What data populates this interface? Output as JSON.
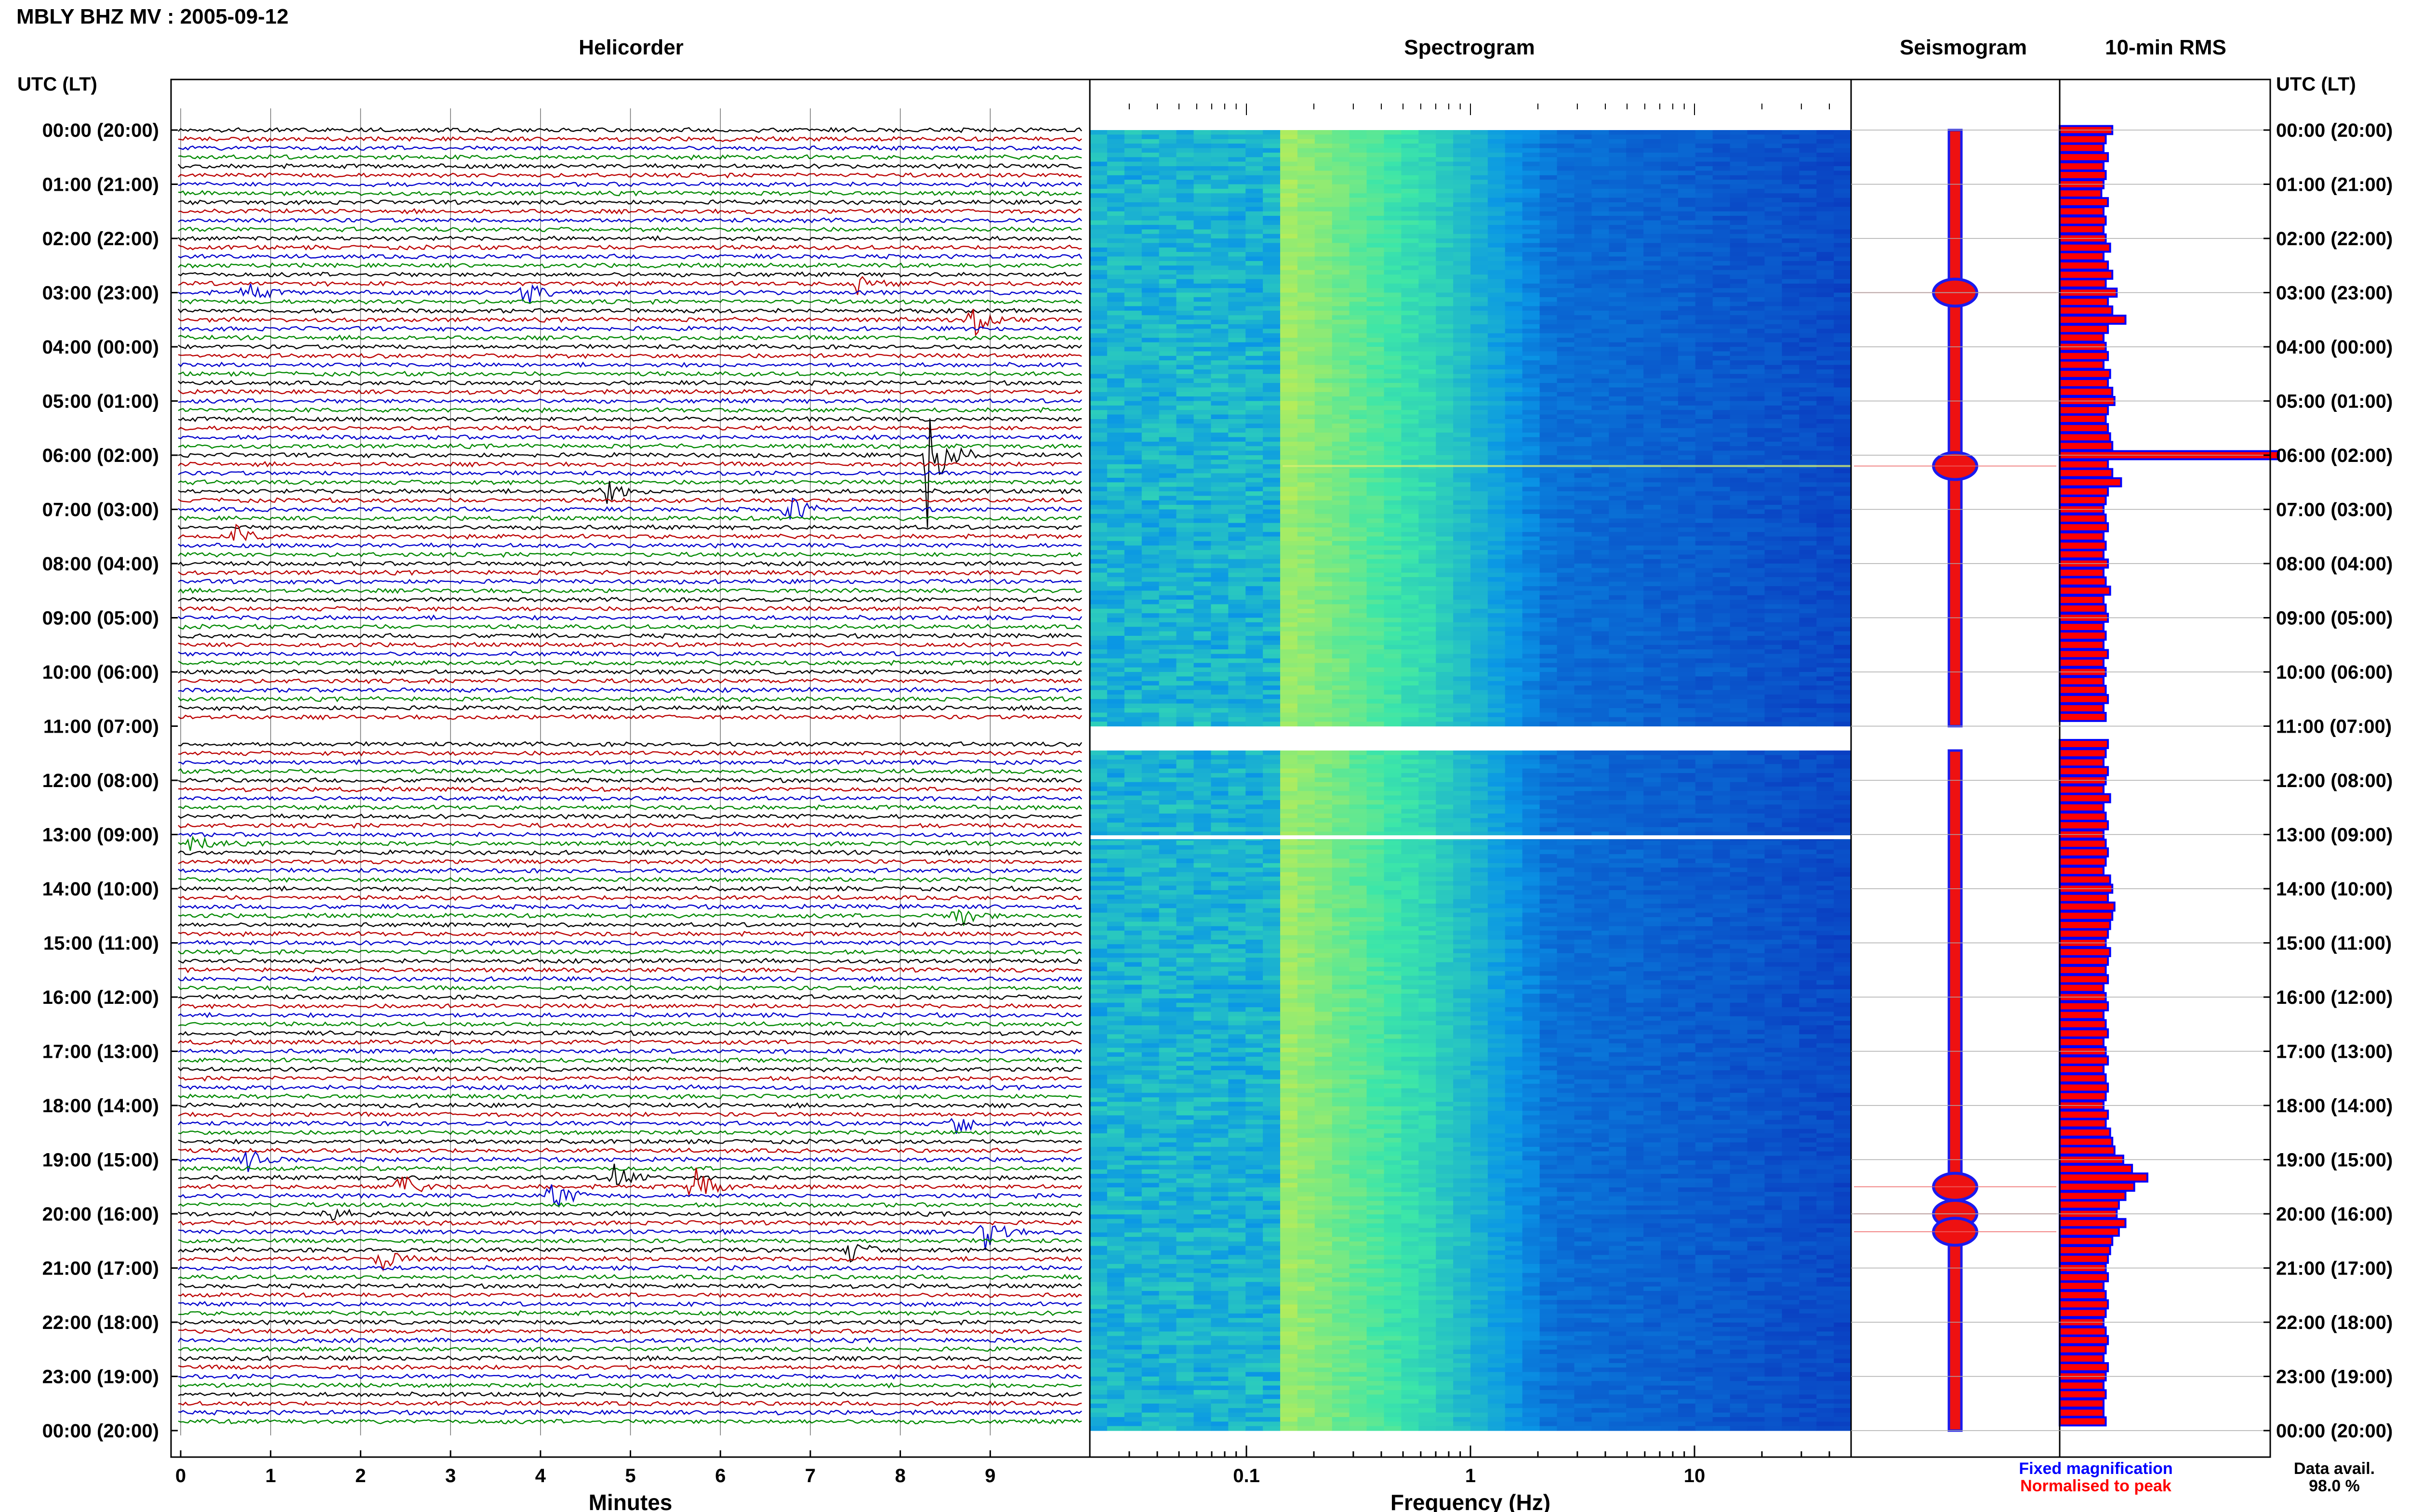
{
  "header": {
    "title": "MBLY BHZ MV : 2005-09-12"
  },
  "panels": {
    "helicorder": "Helicorder",
    "spectrogram": "Spectrogram",
    "seismogram": "Seismogram",
    "rms": "10-min RMS"
  },
  "axis": {
    "time_header": "UTC (LT)",
    "minutes_label": "Minutes",
    "frequency_label": "Frequency (Hz)"
  },
  "legend": {
    "fixed": "Fixed magnification",
    "normalised": "Normalised to peak",
    "avail_label": "Data avail.",
    "avail_value": "98.0 %"
  },
  "colors": {
    "trace_cycle": [
      "#000000",
      "#bb0000",
      "#0000cc",
      "#008800"
    ],
    "rms_fill": "#ff0000",
    "rms_edge": "#0000ff",
    "fixed_text": "#0000ff",
    "normalised_text": "#ff0000",
    "spectro_low": "#0a1ec8",
    "spectro_mid": "#2ec4e6",
    "spectro_peak": "#e6ef50"
  },
  "chart_data": [
    {
      "type": "line",
      "panel": "Helicorder",
      "xlabel": "Minutes",
      "x_ticks": [
        "0",
        "1",
        "2",
        "3",
        "4",
        "5",
        "6",
        "7",
        "8",
        "9"
      ],
      "xlim": [
        0,
        10
      ],
      "row_minutes": 10,
      "rows_per_hour": 6,
      "y_tick_labels": [
        "00:00 (20:00)",
        "01:00 (21:00)",
        "02:00 (22:00)",
        "03:00 (23:00)",
        "04:00 (00:00)",
        "05:00 (01:00)",
        "06:00 (02:00)",
        "07:00 (03:00)",
        "08:00 (04:00)",
        "09:00 (05:00)",
        "10:00 (06:00)",
        "11:00 (07:00)",
        "12:00 (08:00)",
        "13:00 (09:00)",
        "14:00 (10:00)",
        "15:00 (11:00)",
        "16:00 (12:00)",
        "17:00 (13:00)",
        "18:00 (14:00)",
        "19:00 (15:00)",
        "20:00 (16:00)",
        "21:00 (17:00)",
        "22:00 (18:00)",
        "23:00 (19:00)",
        "00:00 (20:00)"
      ],
      "data_gap": {
        "start_hour": 11.0,
        "end_hour": 11.25,
        "start_minute_in_row": 5.8
      },
      "events": [
        {
          "hour": 3.0,
          "minute": 0.7,
          "amplitude": 0.5
        },
        {
          "hour": 3.0,
          "minute": 3.8,
          "amplitude": 0.6
        },
        {
          "hour": 2.85,
          "minute": 7.5,
          "amplitude": 0.5
        },
        {
          "hour": 3.5,
          "minute": 8.8,
          "amplitude": 0.6
        },
        {
          "hour": 6.0,
          "minute": 8.3,
          "amplitude": 3.0
        },
        {
          "hour": 6.7,
          "minute": 4.7,
          "amplitude": 0.5
        },
        {
          "hour": 7.0,
          "minute": 6.7,
          "amplitude": 0.8
        },
        {
          "hour": 7.5,
          "minute": 0.6,
          "amplitude": 0.4
        },
        {
          "hour": 13.1,
          "minute": 0.1,
          "amplitude": 0.4
        },
        {
          "hour": 14.5,
          "minute": 8.6,
          "amplitude": 0.6
        },
        {
          "hour": 18.3,
          "minute": 8.6,
          "amplitude": 0.5
        },
        {
          "hour": 19.0,
          "minute": 0.7,
          "amplitude": 0.5
        },
        {
          "hour": 19.33,
          "minute": 4.8,
          "amplitude": 0.7
        },
        {
          "hour": 19.5,
          "minute": 5.7,
          "amplitude": 1.0
        },
        {
          "hour": 19.5,
          "minute": 2.4,
          "amplitude": 0.6
        },
        {
          "hour": 19.67,
          "minute": 4.1,
          "amplitude": 0.7
        },
        {
          "hour": 20.0,
          "minute": 1.6,
          "amplitude": 0.5
        },
        {
          "hour": 20.33,
          "minute": 8.9,
          "amplitude": 0.8
        },
        {
          "hour": 20.83,
          "minute": 2.2,
          "amplitude": 0.5
        },
        {
          "hour": 20.67,
          "minute": 7.4,
          "amplitude": 0.5
        }
      ]
    },
    {
      "type": "heatmap",
      "panel": "Spectrogram",
      "xlabel": "Frequency (Hz)",
      "x_scale": "log",
      "xlim": [
        0.02,
        50
      ],
      "x_tick_labels": [
        "0.1",
        "1",
        "10"
      ],
      "peak_band_hz": [
        0.15,
        0.6
      ],
      "blank_rows_hours": [
        11.0,
        13.05
      ]
    },
    {
      "type": "line",
      "panel": "Seismogram",
      "events_hours": [
        3.0,
        6.2,
        19.5,
        20.0,
        20.33
      ]
    },
    {
      "type": "bar",
      "panel": "10-min RMS",
      "orientation": "horizontal",
      "x_hours": [
        0,
        0.17,
        0.33,
        0.5,
        0.67,
        0.83,
        1,
        1.17,
        1.33,
        1.5,
        1.67,
        1.83,
        2,
        2.17,
        2.33,
        2.5,
        2.67,
        2.83,
        3,
        3.17,
        3.33,
        3.5,
        3.67,
        3.83,
        4,
        4.17,
        4.33,
        4.5,
        4.67,
        4.83,
        5,
        5.17,
        5.33,
        5.5,
        5.67,
        5.83,
        6,
        6.17,
        6.33,
        6.5,
        6.67,
        6.83,
        7,
        7.17,
        7.33,
        7.5,
        7.67,
        7.83,
        8,
        8.17,
        8.33,
        8.5,
        8.67,
        8.83,
        9,
        9.17,
        9.33,
        9.5,
        9.67,
        9.83,
        10,
        10.17,
        10.33,
        10.5,
        10.67,
        10.83,
        11,
        11.17,
        11.33,
        11.5,
        11.67,
        11.83,
        12,
        12.17,
        12.33,
        12.5,
        12.67,
        12.83,
        13,
        13.17,
        13.33,
        13.5,
        13.67,
        13.83,
        14,
        14.17,
        14.33,
        14.5,
        14.67,
        14.83,
        15,
        15.17,
        15.33,
        15.5,
        15.67,
        15.83,
        16,
        16.17,
        16.33,
        16.5,
        16.67,
        16.83,
        17,
        17.17,
        17.33,
        17.5,
        17.67,
        17.83,
        18,
        18.17,
        18.33,
        18.5,
        18.67,
        18.83,
        19,
        19.17,
        19.33,
        19.5,
        19.67,
        19.83,
        20,
        20.17,
        20.33,
        20.5,
        20.67,
        20.83,
        21,
        21.17,
        21.33,
        21.5,
        21.67,
        21.83,
        22,
        22.17,
        22.33,
        22.5,
        22.67,
        22.83,
        23,
        23.17,
        23.33,
        23.5,
        23.67,
        23.83
      ],
      "values": [
        0.24,
        0.21,
        0.2,
        0.22,
        0.2,
        0.21,
        0.2,
        0.19,
        0.22,
        0.2,
        0.21,
        0.2,
        0.21,
        0.23,
        0.2,
        0.22,
        0.24,
        0.21,
        0.26,
        0.22,
        0.24,
        0.3,
        0.22,
        0.2,
        0.21,
        0.22,
        0.2,
        0.23,
        0.22,
        0.24,
        0.25,
        0.22,
        0.21,
        0.22,
        0.23,
        0.24,
        1.0,
        0.22,
        0.24,
        0.28,
        0.22,
        0.21,
        0.2,
        0.21,
        0.22,
        0.2,
        0.21,
        0.2,
        0.22,
        0.2,
        0.21,
        0.23,
        0.2,
        0.21,
        0.22,
        0.2,
        0.21,
        0.2,
        0.22,
        0.2,
        0.21,
        0.2,
        0.21,
        0.22,
        0.2,
        0.21,
        0,
        0,
        0.22,
        0.21,
        0.2,
        0.22,
        0.21,
        0.2,
        0.23,
        0.2,
        0.21,
        0.22,
        0.2,
        0.21,
        0.22,
        0.21,
        0.2,
        0.23,
        0.24,
        0.22,
        0.25,
        0.24,
        0.23,
        0.22,
        0.21,
        0.23,
        0.22,
        0.21,
        0.22,
        0.2,
        0.21,
        0.22,
        0.2,
        0.21,
        0.22,
        0.2,
        0.21,
        0.22,
        0.2,
        0.21,
        0.22,
        0.21,
        0.2,
        0.22,
        0.21,
        0.23,
        0.24,
        0.25,
        0.29,
        0.33,
        0.4,
        0.34,
        0.3,
        0.27,
        0.26,
        0.3,
        0.27,
        0.24,
        0.23,
        0.22,
        0.21,
        0.22,
        0.2,
        0.21,
        0.22,
        0.21,
        0.2,
        0.21,
        0.22,
        0.21,
        0.2,
        0.22,
        0.21,
        0.2,
        0.21,
        0.2,
        0.2,
        0.21
      ]
    }
  ]
}
